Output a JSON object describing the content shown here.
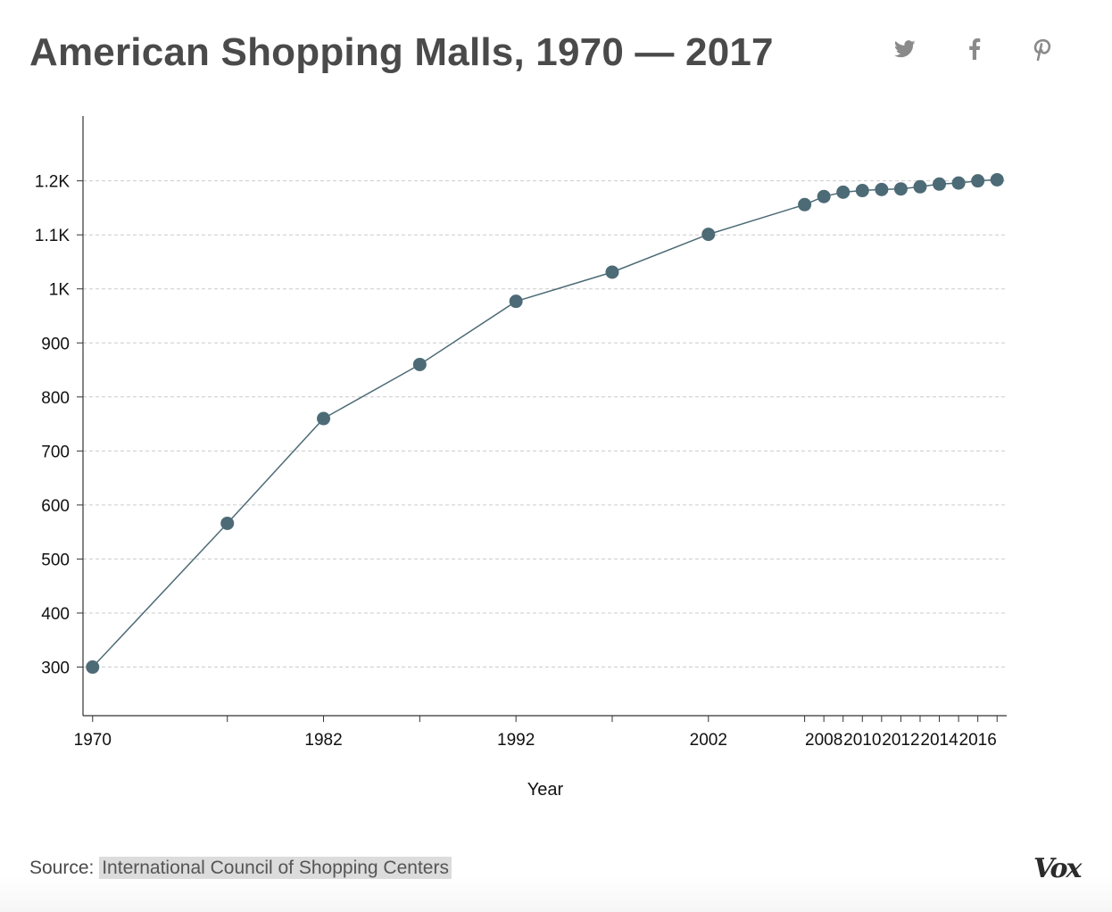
{
  "header": {
    "title": "American Shopping Malls, 1970 — 2017",
    "share_icons": [
      "twitter-icon",
      "facebook-icon",
      "pinterest-icon"
    ]
  },
  "footer": {
    "source_label": "Source:",
    "source_link": "International Council of Shopping Centers",
    "logo": "Vox"
  },
  "colors": {
    "series": "#4d6b76",
    "grid": "#cccccc",
    "axis": "#333333"
  },
  "chart_data": {
    "type": "line",
    "title": "American Shopping Malls, 1970 — 2017",
    "xlabel": "Year",
    "ylabel": "",
    "xlim": [
      1969.5,
      2017.5
    ],
    "ylim": [
      210,
      1320
    ],
    "grid": true,
    "markers": true,
    "x_ticks": [
      1970,
      1977,
      1982,
      1987,
      1992,
      1997,
      2002,
      2007,
      2008,
      2009,
      2010,
      2011,
      2012,
      2013,
      2014,
      2015,
      2016,
      2017
    ],
    "x_tick_labels": [
      {
        "value": 1970,
        "label": "1970"
      },
      {
        "value": 1982,
        "label": "1982"
      },
      {
        "value": 1992,
        "label": "1992"
      },
      {
        "value": 2002,
        "label": "2002"
      },
      {
        "value": 2008,
        "label": "2008"
      },
      {
        "value": 2010,
        "label": "2010"
      },
      {
        "value": 2012,
        "label": "2012"
      },
      {
        "value": 2014,
        "label": "2014"
      },
      {
        "value": 2016,
        "label": "2016"
      }
    ],
    "y_ticks": [
      {
        "value": 300,
        "label": "300"
      },
      {
        "value": 400,
        "label": "400"
      },
      {
        "value": 500,
        "label": "500"
      },
      {
        "value": 600,
        "label": "600"
      },
      {
        "value": 700,
        "label": "700"
      },
      {
        "value": 800,
        "label": "800"
      },
      {
        "value": 900,
        "label": "900"
      },
      {
        "value": 1000,
        "label": "1K"
      },
      {
        "value": 1100,
        "label": "1.1K"
      },
      {
        "value": 1200,
        "label": "1.2K"
      }
    ],
    "series": [
      {
        "x": [
          1970,
          1977,
          1982,
          1987,
          1992,
          1997,
          2002,
          2007,
          2008,
          2009,
          2010,
          2011,
          2012,
          2013,
          2014,
          2015,
          2016,
          2017
        ],
        "values": [
          300,
          566,
          760,
          860,
          977,
          1031,
          1101,
          1156,
          1171,
          1179,
          1182,
          1184,
          1185,
          1189,
          1194,
          1196,
          1200,
          1202
        ]
      }
    ]
  }
}
